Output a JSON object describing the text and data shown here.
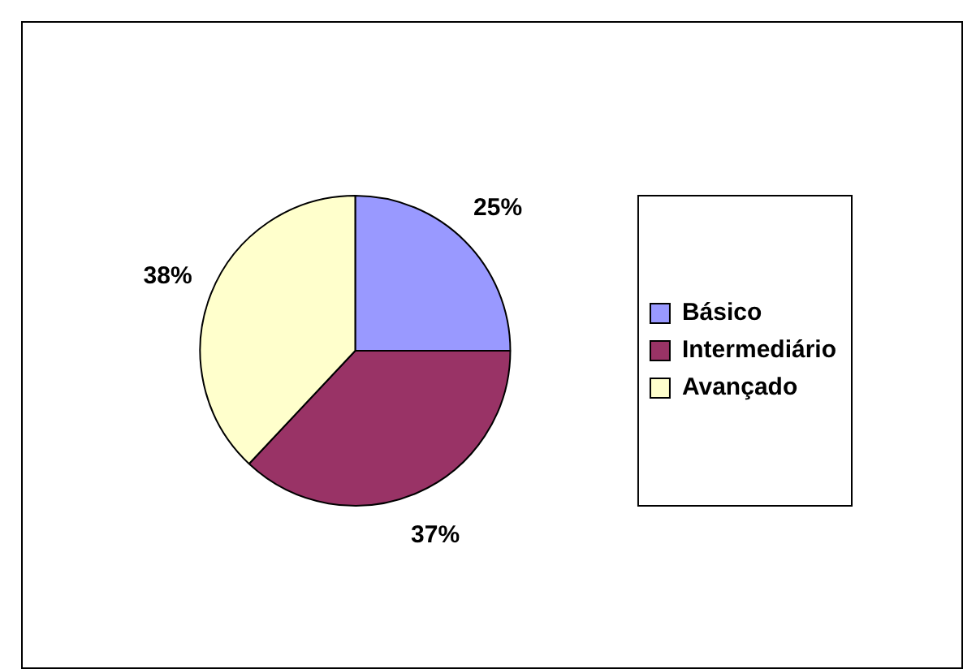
{
  "chart_data": {
    "type": "pie",
    "categories": [
      "Básico",
      "Intermediário",
      "Avançado"
    ],
    "values": [
      25,
      37,
      38
    ],
    "value_labels": [
      "25%",
      "37%",
      "38%"
    ],
    "colors": [
      "#9999ff",
      "#993366",
      "#ffffcc"
    ],
    "legend": "right"
  }
}
